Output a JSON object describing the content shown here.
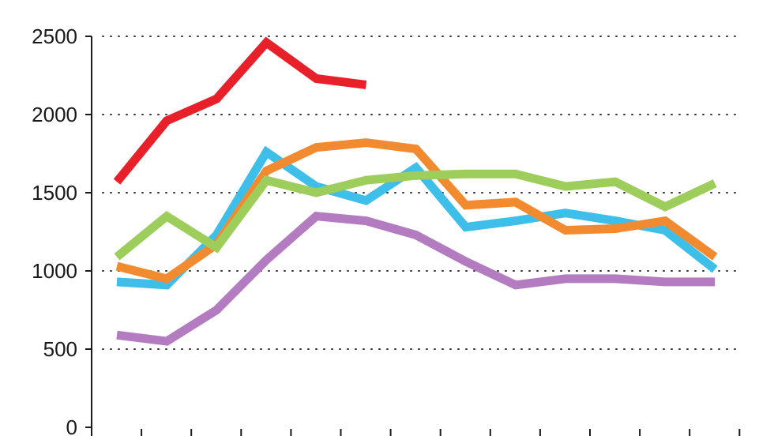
{
  "chart_data": {
    "type": "line",
    "title": "",
    "xlabel": "",
    "ylabel": "",
    "ylim": [
      0,
      2500
    ],
    "yticks": [
      "0",
      "500",
      "1000",
      "1500",
      "2000",
      "2500"
    ],
    "ytick_values": [
      0,
      500,
      1000,
      1500,
      2000,
      2500
    ],
    "x": [
      1,
      2,
      3,
      4,
      5,
      6,
      7,
      8,
      9,
      10,
      11,
      12,
      13
    ],
    "grid": "horizontal-dotted",
    "legend": "none",
    "series": [
      {
        "color": "#e8202a",
        "values": [
          1570,
          1960,
          2100,
          2460,
          2230,
          2190,
          null,
          null,
          null,
          null,
          null,
          null,
          null
        ]
      },
      {
        "color": "#3dbfea",
        "values": [
          930,
          910,
          1230,
          1760,
          1540,
          1450,
          1660,
          1280,
          1320,
          1370,
          1320,
          1260,
          1010
        ]
      },
      {
        "color": "#f28b30",
        "values": [
          1030,
          950,
          1170,
          1640,
          1790,
          1820,
          1780,
          1420,
          1440,
          1260,
          1270,
          1320,
          1090
        ]
      },
      {
        "color": "#9dcd5a",
        "values": [
          1090,
          1350,
          1150,
          1580,
          1500,
          1580,
          1610,
          1620,
          1620,
          1540,
          1570,
          1410,
          1560
        ]
      },
      {
        "color": "#b47cc0",
        "values": [
          590,
          550,
          750,
          1070,
          1350,
          1320,
          1230,
          1060,
          910,
          950,
          950,
          930,
          930
        ]
      }
    ]
  }
}
